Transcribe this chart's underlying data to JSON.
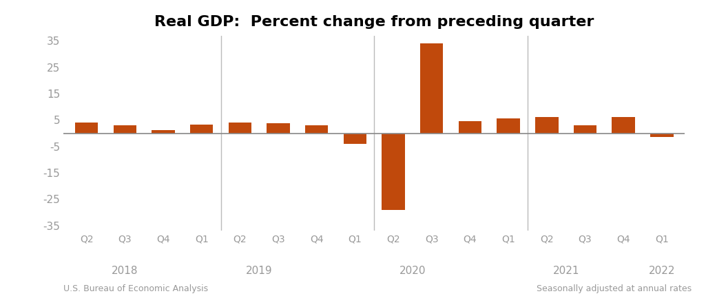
{
  "title": "Real GDP:  Percent change from preceding quarter",
  "bar_color": "#C0490C",
  "zero_line_color": "#888888",
  "categories": [
    "Q2",
    "Q3",
    "Q4",
    "Q1",
    "Q2",
    "Q3",
    "Q4",
    "Q1",
    "Q2",
    "Q3",
    "Q4",
    "Q1",
    "Q2",
    "Q3",
    "Q4",
    "Q1"
  ],
  "year_labels": [
    "2018",
    "2019",
    "2020",
    "2021",
    "2022"
  ],
  "year_centers": [
    1.0,
    4.5,
    8.5,
    12.5,
    15.0
  ],
  "values": [
    4.0,
    3.0,
    1.1,
    3.2,
    4.0,
    3.8,
    2.9,
    -4.0,
    -29.0,
    34.0,
    4.5,
    5.5,
    6.0,
    3.0,
    6.0,
    -1.5
  ],
  "ylim": [
    -37,
    37
  ],
  "yticks": [
    -35,
    -25,
    -15,
    -5,
    5,
    15,
    25,
    35
  ],
  "background_color": "#ffffff",
  "title_fontsize": 16,
  "tick_label_color": "#999999",
  "vline_positions": [
    3.5,
    7.5,
    11.5
  ],
  "vline_color": "#bbbbbb",
  "footnote_left": "U.S. Bureau of Economic Analysis",
  "footnote_right": "Seasonally adjusted at annual rates",
  "xlim": [
    -0.6,
    15.6
  ]
}
